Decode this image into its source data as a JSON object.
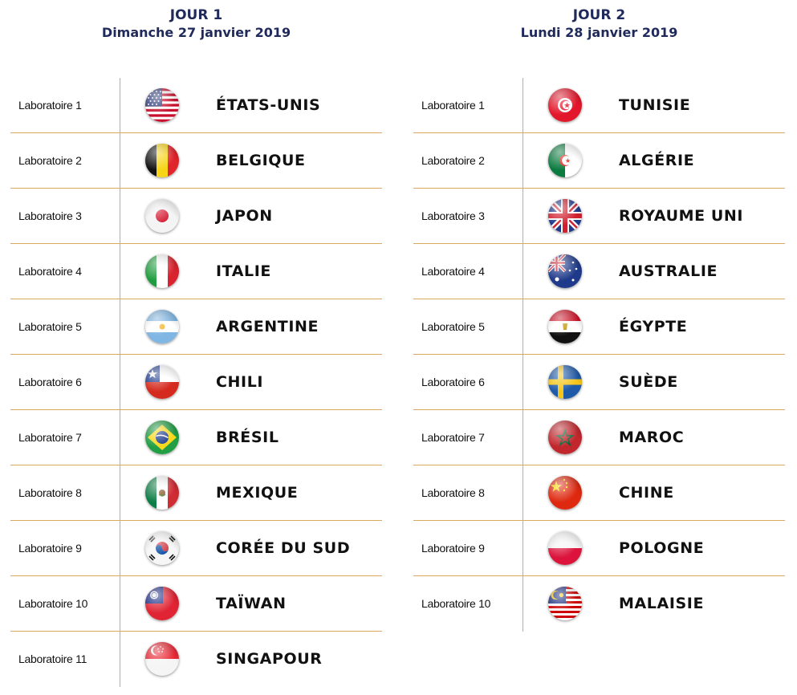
{
  "days": [
    {
      "title": "JOUR 1",
      "date": "Dimanche 27 janvier 2019",
      "rows": [
        {
          "lab": "Laboratoire 1",
          "country": "ÉTATS-UNIS",
          "flag": "usa-flag-icon"
        },
        {
          "lab": "Laboratoire 2",
          "country": "BELGIQUE",
          "flag": "belgium-flag-icon"
        },
        {
          "lab": "Laboratoire 3",
          "country": "JAPON",
          "flag": "japan-flag-icon"
        },
        {
          "lab": "Laboratoire 4",
          "country": "ITALIE",
          "flag": "italy-flag-icon"
        },
        {
          "lab": "Laboratoire 5",
          "country": "ARGENTINE",
          "flag": "argentina-flag-icon"
        },
        {
          "lab": "Laboratoire 6",
          "country": "CHILI",
          "flag": "chile-flag-icon"
        },
        {
          "lab": "Laboratoire 7",
          "country": "BRÉSIL",
          "flag": "brazil-flag-icon"
        },
        {
          "lab": "Laboratoire 8",
          "country": "MEXIQUE",
          "flag": "mexico-flag-icon"
        },
        {
          "lab": "Laboratoire 9",
          "country": "CORÉE DU SUD",
          "flag": "south-korea-flag-icon"
        },
        {
          "lab": "Laboratoire 10",
          "country": "TAÏWAN",
          "flag": "taiwan-flag-icon"
        },
        {
          "lab": "Laboratoire 11",
          "country": "SINGAPOUR",
          "flag": "singapore-flag-icon"
        }
      ]
    },
    {
      "title": "JOUR 2",
      "date": "Lundi 28 janvier 2019",
      "rows": [
        {
          "lab": "Laboratoire 1",
          "country": "TUNISIE",
          "flag": "tunisia-flag-icon"
        },
        {
          "lab": "Laboratoire 2",
          "country": "ALGÉRIE",
          "flag": "algeria-flag-icon"
        },
        {
          "lab": "Laboratoire 3",
          "country": "ROYAUME UNI",
          "flag": "uk-flag-icon"
        },
        {
          "lab": "Laboratoire 4",
          "country": "AUSTRALIE",
          "flag": "australia-flag-icon"
        },
        {
          "lab": "Laboratoire 5",
          "country": "ÉGYPTE",
          "flag": "egypt-flag-icon"
        },
        {
          "lab": "Laboratoire 6",
          "country": "SUÈDE",
          "flag": "sweden-flag-icon"
        },
        {
          "lab": "Laboratoire 7",
          "country": "MAROC",
          "flag": "morocco-flag-icon"
        },
        {
          "lab": "Laboratoire 8",
          "country": "CHINE",
          "flag": "china-flag-icon"
        },
        {
          "lab": "Laboratoire 9",
          "country": "POLOGNE",
          "flag": "poland-flag-icon"
        },
        {
          "lab": "Laboratoire 10",
          "country": "MALAISIE",
          "flag": "malaysia-flag-icon"
        }
      ]
    }
  ],
  "colors": {
    "heading": "#1f2a5a",
    "rule": "#d8aa5c",
    "text": "#111111"
  }
}
